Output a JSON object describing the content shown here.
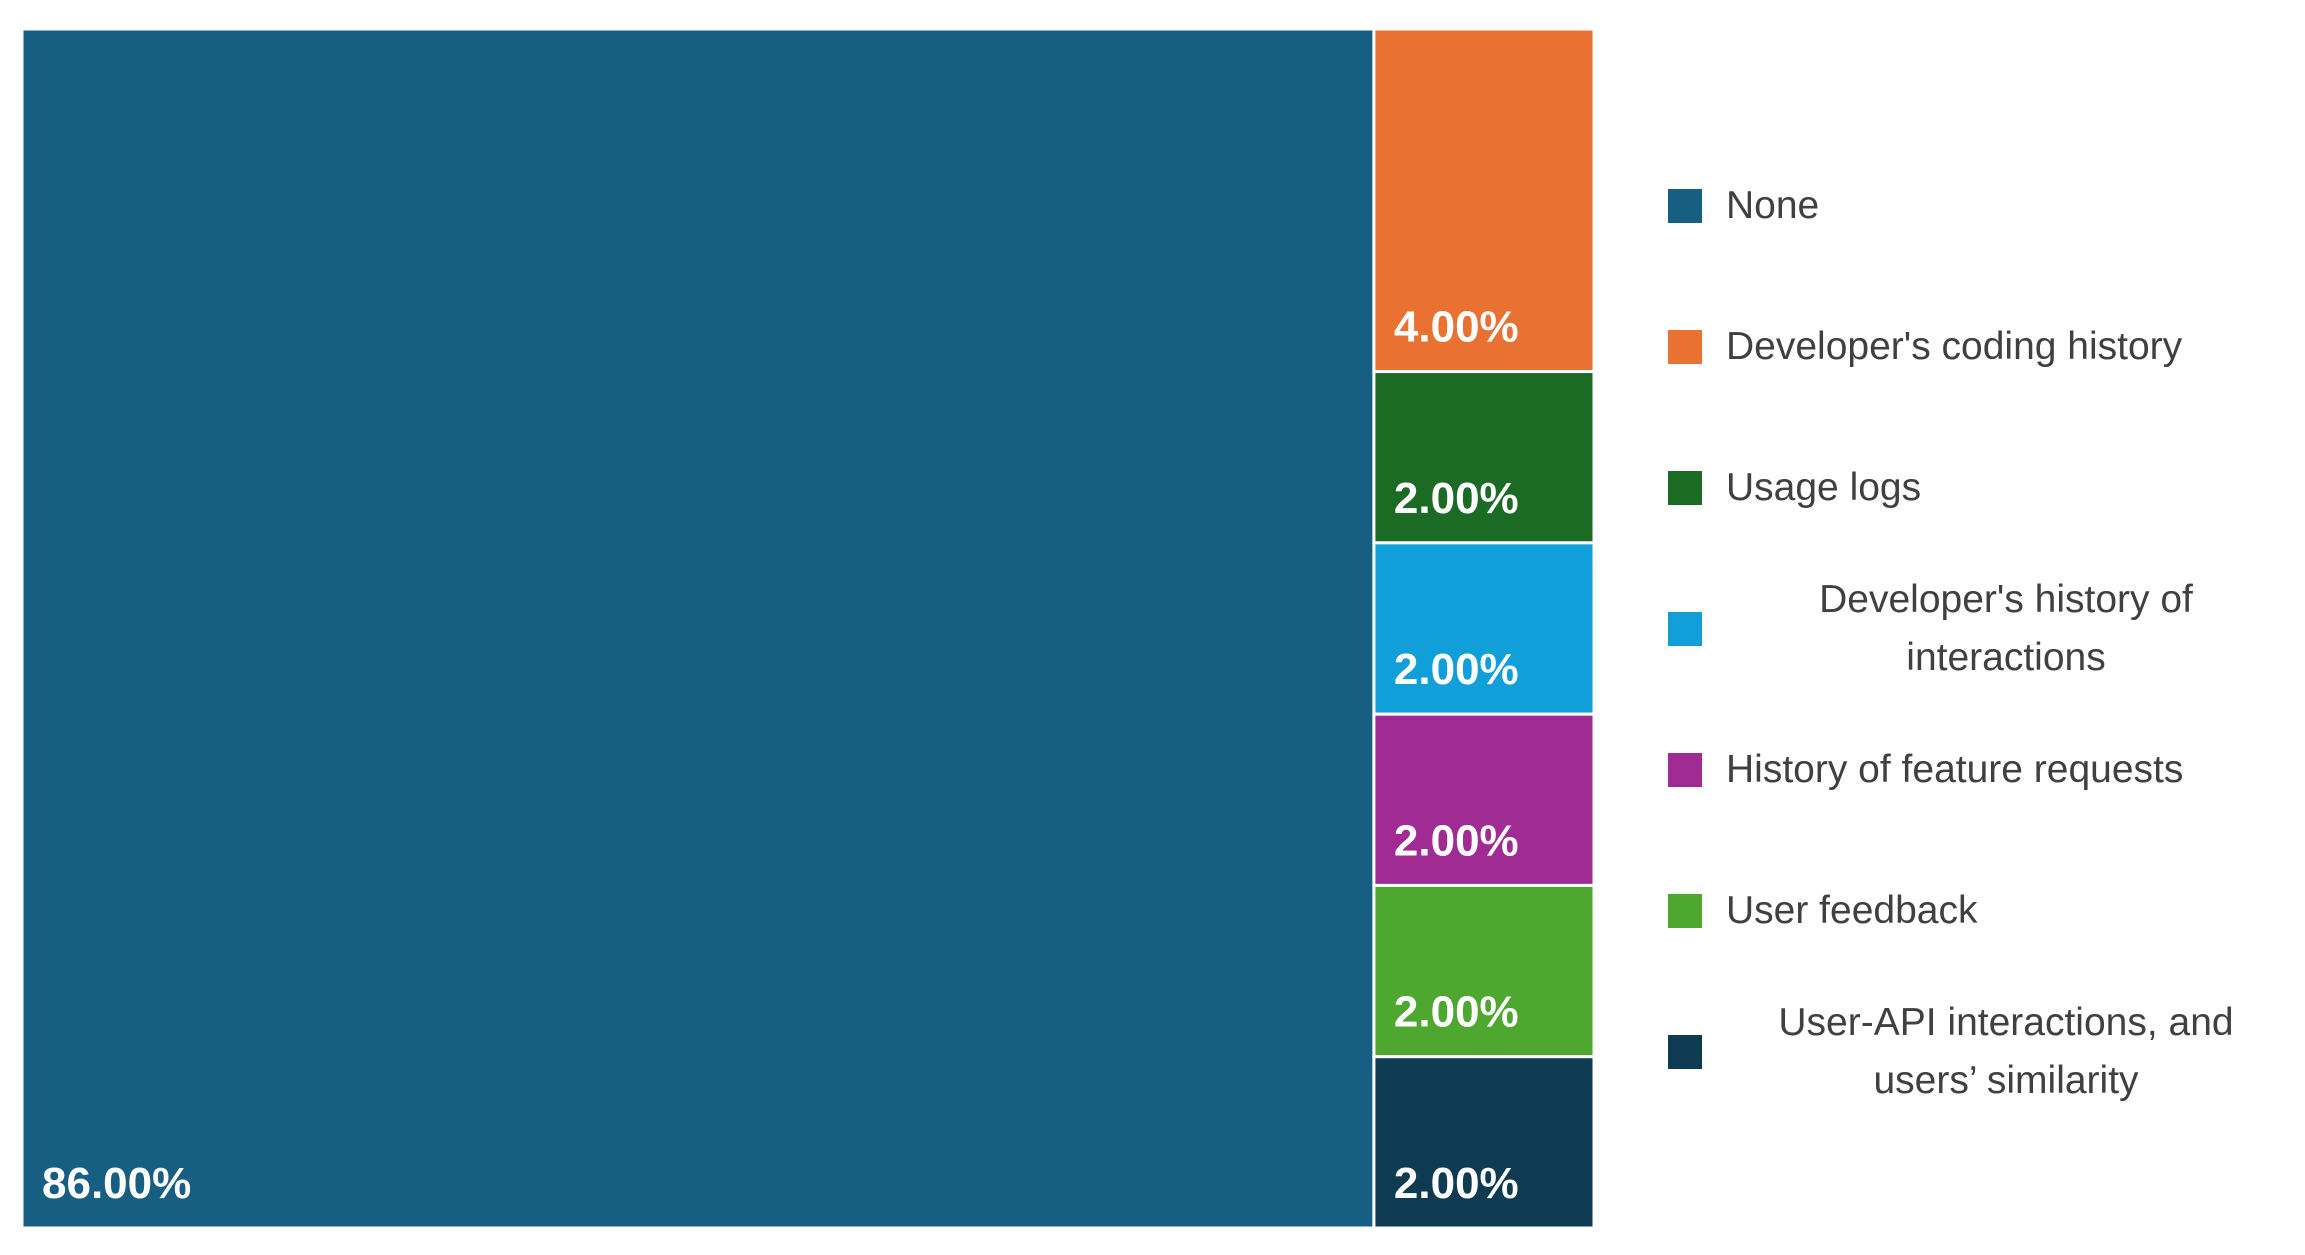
{
  "chart_data": {
    "type": "treemap",
    "categories": [
      "None",
      "Developer's coding history",
      "Usage logs",
      "Developer's history of interactions",
      "History of feature requests",
      "User feedback",
      "User-API interactions, and users’ similarity"
    ],
    "values": [
      86,
      4,
      2,
      2,
      2,
      2,
      2
    ],
    "value_labels": [
      "86.00%",
      "4.00%",
      "2.00%",
      "2.00%",
      "2.00%",
      "2.00%",
      "2.00%"
    ],
    "colors": [
      "#175f82",
      "#e97132",
      "#1b6b25",
      "#119fd9",
      "#a02b93",
      "#4ea72e",
      "#0e3a52"
    ],
    "legend": "right"
  }
}
